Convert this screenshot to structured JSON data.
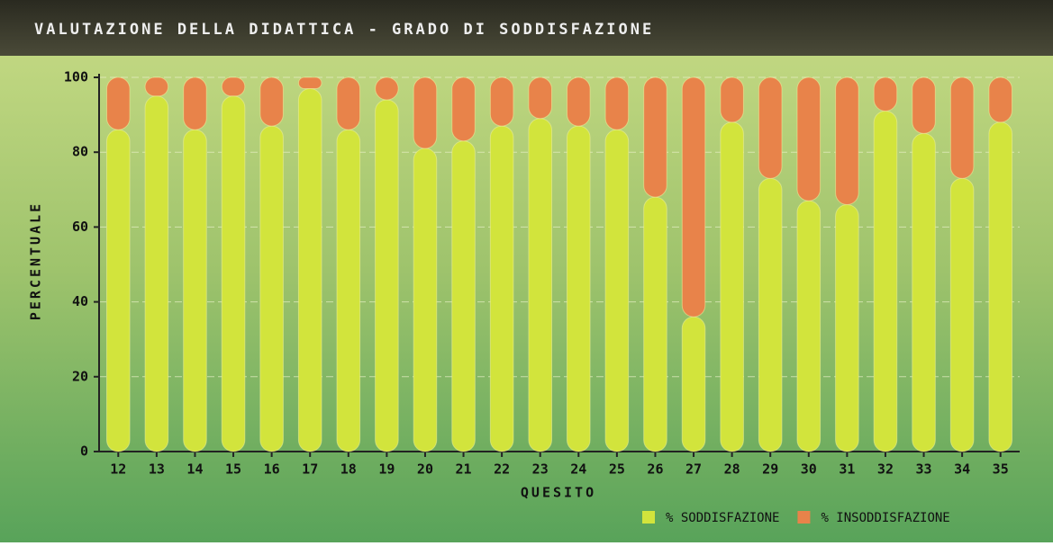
{
  "chart_data": {
    "type": "stacked_bar",
    "title": "VALUTAZIONE DELLA DIDATTICA - GRADO DI SODDISFAZIONE",
    "x_label": "QUESITO",
    "y_label": "PERCENTUALE",
    "categories": [
      "12",
      "13",
      "14",
      "15",
      "16",
      "17",
      "18",
      "19",
      "20",
      "21",
      "22",
      "23",
      "24",
      "25",
      "26",
      "27",
      "28",
      "29",
      "30",
      "31",
      "32",
      "33",
      "34",
      "35"
    ],
    "series": [
      {
        "name": "% SODDISFAZIONE",
        "color": "#d2e43c",
        "values": [
          86,
          95,
          86,
          95,
          87,
          97,
          86,
          94,
          81,
          83,
          87,
          89,
          87,
          86,
          68,
          36,
          88,
          73,
          67,
          66,
          91,
          85,
          73,
          88
        ]
      },
      {
        "name": "% INSODDISFAZIONE",
        "color": "#e8834a",
        "values": [
          14,
          5,
          14,
          5,
          13,
          3,
          14,
          6,
          19,
          17,
          13,
          11,
          13,
          14,
          32,
          64,
          12,
          27,
          33,
          34,
          9,
          15,
          27,
          12
        ]
      }
    ],
    "ylim": [
      0,
      100
    ],
    "yticks": [
      0,
      20,
      40,
      60,
      80,
      100
    ],
    "grid": true
  }
}
